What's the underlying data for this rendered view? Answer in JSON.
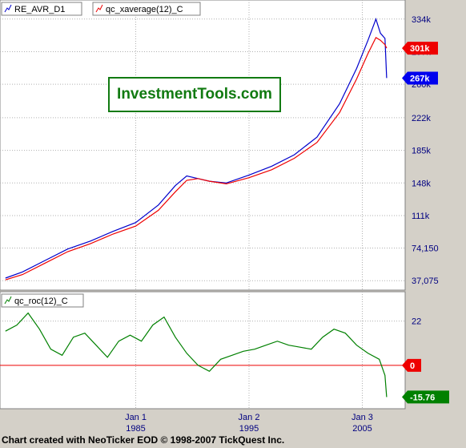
{
  "logo": "InvestmentTools.com",
  "footer": "Chart created with NeoTicker EOD © 1998-2007 TickQuest Inc.",
  "colors": {
    "price": "#0000cc",
    "average": "#ee0000",
    "roc": "#008000",
    "zero_line": "#ee0000"
  },
  "chart_data": [
    {
      "type": "line",
      "legend": [
        "RE_AVR_D1",
        "qc_xaverage(12)_C"
      ],
      "y_ticks": [
        "334k",
        "297k",
        "260k",
        "222k",
        "185k",
        "148k",
        "111k",
        "74,150",
        "37,075"
      ],
      "y_tick_values": [
        334000,
        297000,
        260000,
        222000,
        185000,
        148000,
        111000,
        74150,
        37075
      ],
      "ylim": [
        30000,
        352000
      ],
      "grid": true,
      "badges": [
        {
          "label": "301k",
          "value": 301000,
          "color": "#ee0000"
        },
        {
          "label": "267k",
          "value": 267000,
          "color": "#0000ee"
        }
      ],
      "series": [
        {
          "name": "RE_AVR_D1",
          "color": "#0000cc",
          "x": [
            1973.5,
            1975,
            1977,
            1979,
            1981,
            1983,
            1985,
            1987,
            1988.5,
            1989.5,
            1990.5,
            1991.5,
            1993,
            1995,
            1997,
            1999,
            2001,
            2003,
            2004.5,
            2005.5,
            2006.2,
            2006.6,
            2007.0,
            2007.15
          ],
          "values": [
            40000,
            47000,
            60000,
            73000,
            82000,
            93000,
            103000,
            123000,
            145000,
            156000,
            153000,
            150000,
            148000,
            157000,
            167000,
            180000,
            200000,
            238000,
            278000,
            310000,
            334000,
            318000,
            312000,
            267000
          ]
        },
        {
          "name": "qc_xaverage(12)_C",
          "color": "#ee0000",
          "x": [
            1973.5,
            1975,
            1977,
            1979,
            1981,
            1983,
            1985,
            1987,
            1988.5,
            1989.5,
            1990.5,
            1991.5,
            1993,
            1995,
            1997,
            1999,
            2001,
            2003,
            2004.5,
            2005.5,
            2006.2,
            2006.6,
            2007.0,
            2007.15
          ],
          "values": [
            38000,
            44000,
            57000,
            70000,
            79000,
            90000,
            99000,
            117000,
            138000,
            151000,
            153000,
            150000,
            147000,
            154000,
            163000,
            176000,
            194000,
            228000,
            266000,
            295000,
            313000,
            310000,
            305000,
            301000
          ]
        }
      ]
    },
    {
      "type": "line",
      "legend": [
        "qc_roc(12)_C"
      ],
      "y_ticks": [
        "22",
        "0"
      ],
      "y_tick_values": [
        22,
        0
      ],
      "ylim": [
        -20,
        35
      ],
      "grid": true,
      "badges": [
        {
          "label": "0",
          "value": 0,
          "color": "#ee0000"
        },
        {
          "label": "-15.76",
          "value": -15.76,
          "color": "#008000"
        }
      ],
      "series": [
        {
          "name": "qc_roc(12)_C",
          "color": "#008000",
          "x": [
            1973.5,
            1974.5,
            1975.5,
            1976.5,
            1977.5,
            1978.5,
            1979.5,
            1980.5,
            1981.5,
            1982.5,
            1983.5,
            1984.5,
            1985.5,
            1986.5,
            1987.5,
            1988.5,
            1989.5,
            1990.5,
            1991.5,
            1992.5,
            1993.5,
            1994.5,
            1995.5,
            1996.5,
            1997.5,
            1998.5,
            1999.5,
            2000.5,
            2001.5,
            2002.5,
            2003.5,
            2004.5,
            2005.5,
            2006.5,
            2007.0,
            2007.15
          ],
          "values": [
            17,
            20,
            26,
            18,
            8,
            5,
            14,
            16,
            10,
            4,
            12,
            15,
            12,
            20,
            24,
            14,
            6,
            0,
            -3,
            3,
            5,
            7,
            8,
            10,
            12,
            10,
            9,
            8,
            14,
            18,
            16,
            10,
            6,
            3,
            -5,
            -15.76
          ]
        }
      ]
    },
    {
      "type": "line",
      "x_ticks": [
        {
          "line1": "Jan 1",
          "line2": "1985",
          "value": 1985
        },
        {
          "line1": "Jan 2",
          "line2": "1995",
          "value": 1995
        },
        {
          "line1": "Jan 3",
          "line2": "2005",
          "value": 2005
        }
      ],
      "xlim": [
        1973.3,
        2008.5
      ]
    }
  ]
}
